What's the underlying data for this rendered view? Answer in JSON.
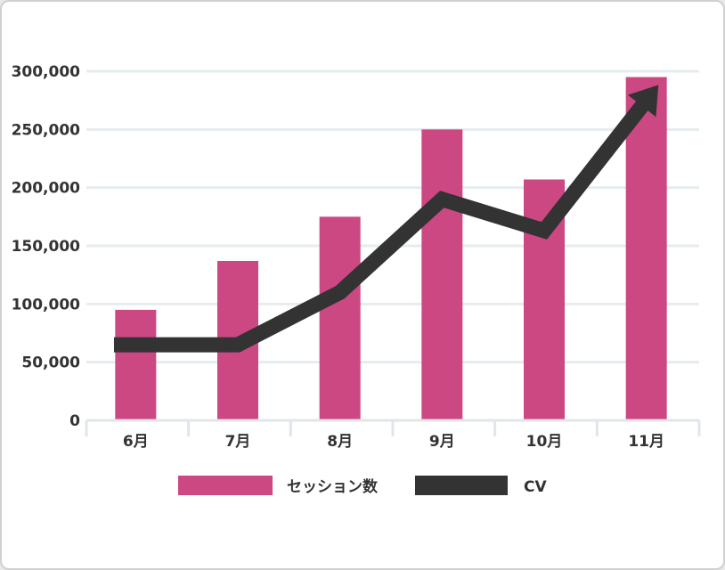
{
  "chart_data": {
    "type": "bar",
    "categories": [
      "6月",
      "7月",
      "8月",
      "9月",
      "10月",
      "11月"
    ],
    "series": [
      {
        "name": "セッション数",
        "type": "bar",
        "color": "#cc4882",
        "values": [
          95000,
          137000,
          175000,
          250000,
          207000,
          295000
        ]
      },
      {
        "name": "CV",
        "type": "line",
        "color": "#333333",
        "values": [
          65000,
          65000,
          110000,
          190000,
          163000,
          275000
        ],
        "arrow_end": true
      }
    ],
    "yticks": [
      "0",
      "50,000",
      "100,000",
      "150,000",
      "200,000",
      "250,000",
      "300,000"
    ],
    "ytick_values": [
      0,
      50000,
      100000,
      150000,
      200000,
      250000,
      300000
    ],
    "ylim": [
      0,
      300000
    ],
    "grid": true,
    "legend": "bottom-center",
    "grid_color": "#e6ecef"
  }
}
